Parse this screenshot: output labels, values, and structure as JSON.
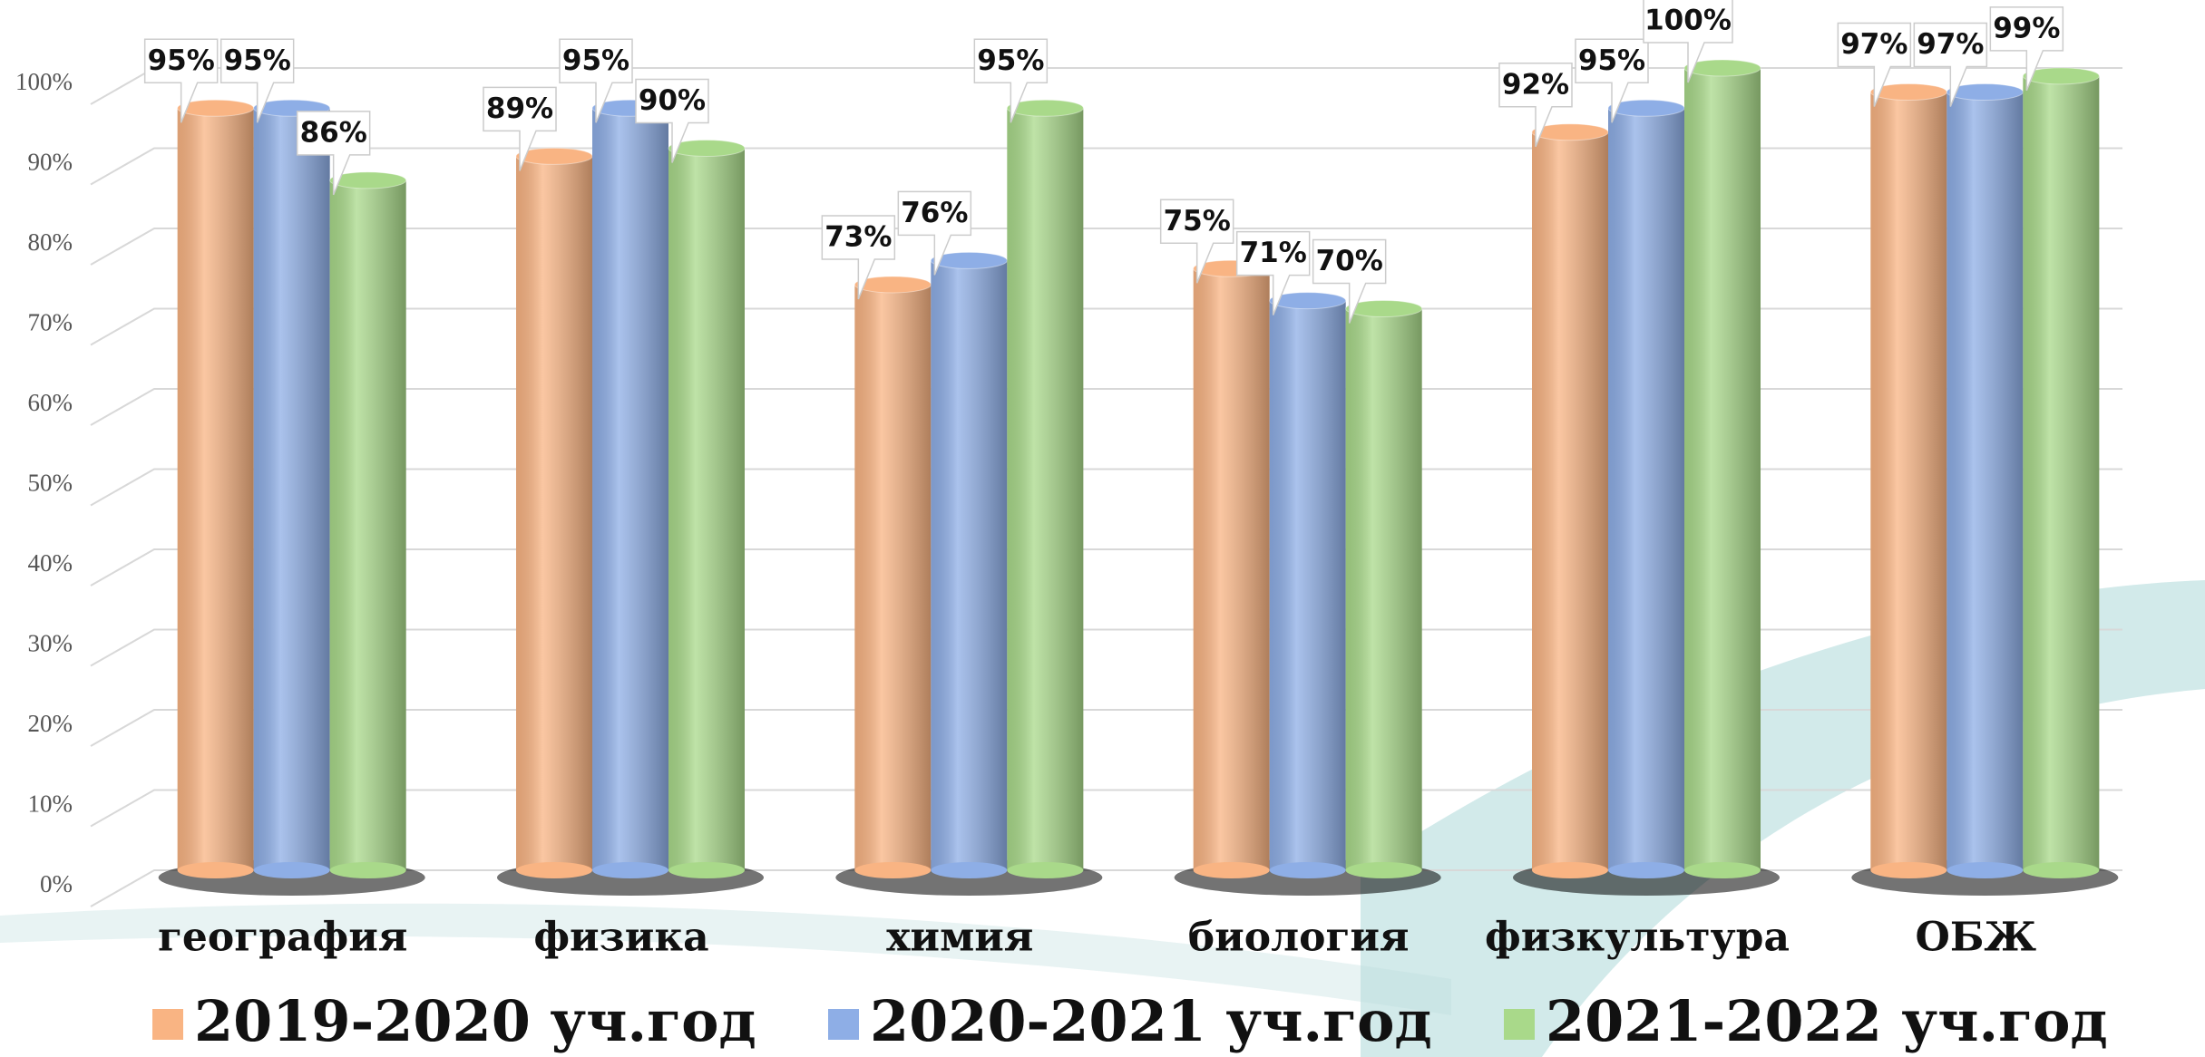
{
  "chart_data": {
    "type": "bar",
    "categories": [
      "география",
      "физика",
      "химия",
      "биология",
      "физкультура",
      "ОБЖ"
    ],
    "series": [
      {
        "name": "2019-2020 уч.год",
        "color": "#f9b483",
        "values": [
          95,
          89,
          73,
          75,
          92,
          97
        ],
        "value_labels": [
          "95%",
          "89%",
          "73%",
          "75%",
          "92%",
          "97%"
        ]
      },
      {
        "name": "2020-2021 уч.год",
        "color": "#8eaee6",
        "values": [
          95,
          95,
          76,
          71,
          95,
          97
        ],
        "value_labels": [
          "95%",
          "95%",
          "76%",
          "71%",
          "95%",
          "97%"
        ]
      },
      {
        "name": "2021-2022 уч.год",
        "color": "#a9d98a",
        "values": [
          86,
          90,
          95,
          70,
          100,
          99
        ],
        "value_labels": [
          "86%",
          "90%",
          "95%",
          "70%",
          "100%",
          "99%"
        ]
      }
    ],
    "ylim": [
      0,
      100
    ],
    "yticks": [
      {
        "value": 0,
        "label": "0%"
      },
      {
        "value": 10,
        "label": "10%"
      },
      {
        "value": 20,
        "label": "20%"
      },
      {
        "value": 30,
        "label": "30%"
      },
      {
        "value": 40,
        "label": "40%"
      },
      {
        "value": 50,
        "label": "50%"
      },
      {
        "value": 60,
        "label": "60%"
      },
      {
        "value": 70,
        "label": "70%"
      },
      {
        "value": 80,
        "label": "80%"
      },
      {
        "value": 90,
        "label": "90%"
      },
      {
        "value": 100,
        "label": "100%"
      }
    ],
    "grid": true,
    "legend": "bottom"
  }
}
